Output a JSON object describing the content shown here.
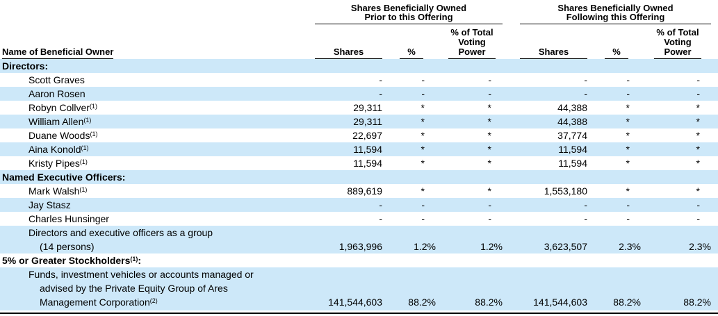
{
  "page": {
    "background_color": "#ffffff",
    "text_color": "#000000",
    "row_highlight_color": "#cde8f9"
  },
  "header": {
    "name_col_label": "Name of Beneficial Owner",
    "groups": [
      {
        "title_line1": "Shares Beneficially Owned",
        "title_line2": "Prior to this Offering",
        "col_shares": "Shares",
        "col_pct": "%",
        "col_vp_line1": "% of Total",
        "col_vp_line2": "Voting",
        "col_vp_line3": "Power"
      },
      {
        "title_line1": "Shares Beneficially Owned",
        "title_line2": "Following this Offering",
        "col_shares": "Shares",
        "col_pct": "%",
        "col_vp_line1": "% of Total",
        "col_vp_line2": "Voting",
        "col_vp_line3": "Power"
      }
    ]
  },
  "table": {
    "rows": [
      {
        "kind": "section",
        "highlight": true,
        "lines": [
          {
            "text": "Directors:",
            "sup": "",
            "after": ""
          }
        ],
        "values": [
          "",
          "",
          "",
          "",
          "",
          ""
        ]
      },
      {
        "kind": "person",
        "highlight": false,
        "lines": [
          {
            "text": "Scott Graves",
            "sup": "",
            "after": ""
          }
        ],
        "values": [
          "-",
          "-",
          "-",
          "-",
          "-",
          "-"
        ]
      },
      {
        "kind": "person",
        "highlight": true,
        "lines": [
          {
            "text": "Aaron Rosen",
            "sup": "",
            "after": ""
          }
        ],
        "values": [
          "-",
          "-",
          "-",
          "-",
          "-",
          "-"
        ]
      },
      {
        "kind": "person",
        "highlight": false,
        "lines": [
          {
            "text": "Robyn Collver",
            "sup": "(1)",
            "after": ""
          }
        ],
        "values": [
          "29,311",
          "*",
          "*",
          "44,388",
          "*",
          "*"
        ]
      },
      {
        "kind": "person",
        "highlight": true,
        "lines": [
          {
            "text": "William Allen",
            "sup": "(1)",
            "after": ""
          }
        ],
        "values": [
          "29,311",
          "*",
          "*",
          "44,388",
          "*",
          "*"
        ]
      },
      {
        "kind": "person",
        "highlight": false,
        "lines": [
          {
            "text": "Duane Woods",
            "sup": "(1)",
            "after": ""
          }
        ],
        "values": [
          "22,697",
          "*",
          "*",
          "37,774",
          "*",
          "*"
        ]
      },
      {
        "kind": "person",
        "highlight": true,
        "lines": [
          {
            "text": "Aina Konold",
            "sup": "(1)",
            "after": ""
          }
        ],
        "values": [
          "11,594",
          "*",
          "*",
          "11,594",
          "*",
          "*"
        ]
      },
      {
        "kind": "person",
        "highlight": false,
        "lines": [
          {
            "text": "Kristy Pipes",
            "sup": "(1)",
            "after": ""
          }
        ],
        "values": [
          "11,594",
          "*",
          "*",
          "11,594",
          "*",
          "*"
        ]
      },
      {
        "kind": "section",
        "highlight": true,
        "lines": [
          {
            "text": "Named Executive Officers:",
            "sup": "",
            "after": ""
          }
        ],
        "values": [
          "",
          "",
          "",
          "",
          "",
          ""
        ]
      },
      {
        "kind": "person",
        "highlight": false,
        "lines": [
          {
            "text": "Mark Walsh",
            "sup": "(1)",
            "after": ""
          }
        ],
        "values": [
          "889,619",
          "*",
          "*",
          "1,553,180",
          "*",
          "*"
        ]
      },
      {
        "kind": "person",
        "highlight": true,
        "lines": [
          {
            "text": "Jay Stasz",
            "sup": "",
            "after": ""
          }
        ],
        "values": [
          "-",
          "-",
          "-",
          "-",
          "-",
          "-"
        ]
      },
      {
        "kind": "person",
        "highlight": false,
        "lines": [
          {
            "text": "Charles Hunsinger",
            "sup": "",
            "after": ""
          }
        ],
        "values": [
          "-",
          "-",
          "-",
          "-",
          "-",
          "-"
        ]
      },
      {
        "kind": "person",
        "highlight": true,
        "lines": [
          {
            "text": "Directors and executive officers as a group",
            "sup": "",
            "after": ""
          },
          {
            "text": "(14 persons)",
            "sup": "",
            "after": ""
          }
        ],
        "values": [
          "1,963,996",
          "1.2%",
          "1.2%",
          "3,623,507",
          "2.3%",
          "2.3%"
        ]
      },
      {
        "kind": "section",
        "highlight": false,
        "lines": [
          {
            "text": "5% or Greater Stockholders",
            "sup": "(1)",
            "after": ":"
          }
        ],
        "values": [
          "",
          "",
          "",
          "",
          "",
          ""
        ]
      },
      {
        "kind": "person",
        "highlight": true,
        "lines": [
          {
            "text": "Funds, investment vehicles or accounts managed or",
            "sup": "",
            "after": ""
          },
          {
            "text": "advised by the Private Equity Group of Ares",
            "sup": "",
            "after": ""
          },
          {
            "text": "Management Corporation",
            "sup": "(2)",
            "after": ""
          }
        ],
        "values": [
          "141,544,603",
          "88.2%",
          "88.2%",
          "141,544,603",
          "88.2%",
          "88.2%"
        ]
      }
    ]
  }
}
